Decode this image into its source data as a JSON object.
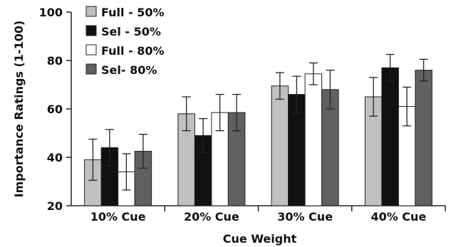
{
  "chart_data": {
    "type": "bar",
    "title": "",
    "xlabel": "Cue Weight",
    "ylabel": "Importance Ratings (1-100)",
    "ylim": [
      20,
      100
    ],
    "yticks": [
      "20",
      "40",
      "60",
      "80",
      "100"
    ],
    "categories": [
      "10% Cue",
      "20% Cue",
      "30% Cue",
      "40% Cue"
    ],
    "grid": false,
    "legend_position": "top-left",
    "series": [
      {
        "name": "Full - 50%",
        "color": "#c0c0c0",
        "values": [
          39,
          58,
          69.5,
          65
        ],
        "error": [
          8.5,
          7,
          5.5,
          8
        ]
      },
      {
        "name": "Sel - 50%",
        "color": "#111111",
        "values": [
          44,
          49,
          66,
          77
        ],
        "error": [
          7.5,
          7,
          7.5,
          5.5
        ]
      },
      {
        "name": "Full - 80%",
        "color": "#ffffff",
        "values": [
          34,
          58.5,
          74.5,
          61
        ],
        "error": [
          7.5,
          7.5,
          4.5,
          8
        ]
      },
      {
        "name": "Sel- 80%",
        "color": "#606060",
        "values": [
          42.5,
          58.5,
          68,
          76
        ],
        "error": [
          7,
          7.5,
          8,
          4.5
        ]
      }
    ]
  }
}
